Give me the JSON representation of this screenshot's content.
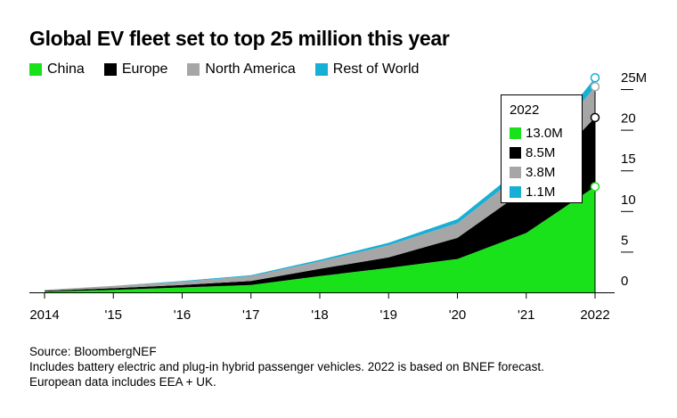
{
  "title": "Global EV fleet set to top 25 million this year",
  "legend": [
    {
      "label": "China",
      "color": "#1ae21a"
    },
    {
      "label": "Europe",
      "color": "#000000"
    },
    {
      "label": "North America",
      "color": "#a6a6a6"
    },
    {
      "label": "Rest of World",
      "color": "#16b0d6"
    }
  ],
  "tooltip": {
    "title": "2022",
    "rows": [
      {
        "value": "13.0M",
        "color": "#1ae21a"
      },
      {
        "value": "8.5M",
        "color": "#000000"
      },
      {
        "value": "3.8M",
        "color": "#a6a6a6"
      },
      {
        "value": "1.1M",
        "color": "#16b0d6"
      }
    ]
  },
  "notes": {
    "source": "Source: BloombergNEF",
    "line1": "Includes battery electric and plug-in hybrid passenger vehicles. 2022 is based on BNEF forecast.",
    "line2": "European data includes EEA + UK."
  },
  "chart_data": {
    "type": "area",
    "stacked": true,
    "title": "Global EV fleet set to top 25 million this year",
    "x": [
      2014,
      2015,
      2016,
      2017,
      2018,
      2019,
      2020,
      2021,
      2022
    ],
    "x_tick_labels": [
      "2014",
      "'15",
      "'16",
      "'17",
      "'18",
      "'19",
      "'20",
      "'21",
      "2022"
    ],
    "y_tick_labels": [
      "0",
      "5",
      "10",
      "15",
      "20",
      "25M"
    ],
    "y_ticks": [
      0,
      5,
      10,
      15,
      20,
      25
    ],
    "ylim": [
      0,
      25
    ],
    "y_axis_side": "right",
    "grid": false,
    "legend_position": "top-left",
    "series": [
      {
        "name": "China",
        "color": "#1ae21a",
        "values": [
          0.1,
          0.3,
          0.6,
          0.9,
          2.0,
          3.0,
          4.1,
          7.3,
          13.0
        ]
      },
      {
        "name": "Europe",
        "color": "#000000",
        "values": [
          0.1,
          0.2,
          0.3,
          0.5,
          0.9,
          1.3,
          2.6,
          5.4,
          8.5
        ]
      },
      {
        "name": "North America",
        "color": "#a6a6a6",
        "values": [
          0.1,
          0.3,
          0.4,
          0.6,
          0.9,
          1.5,
          1.8,
          2.4,
          3.8
        ]
      },
      {
        "name": "Rest of World",
        "color": "#16b0d6",
        "values": [
          0.0,
          0.0,
          0.1,
          0.1,
          0.2,
          0.3,
          0.5,
          0.7,
          1.1
        ]
      }
    ]
  }
}
